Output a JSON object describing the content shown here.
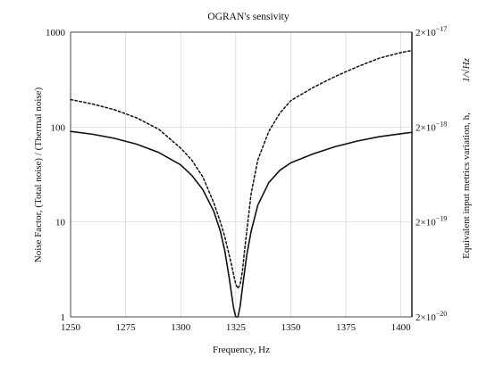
{
  "chart_data": {
    "type": "line",
    "title": "OGRAN's sensivity",
    "xlabel": "Frequency, Hz",
    "ylabel_left": "Noise Factor, (Total noise) / (Thermal noise)",
    "ylabel_right": "Equivalent input metrics variation, h,",
    "ylabel_right_unit": "1/√Hz",
    "xlim": [
      1250,
      1405
    ],
    "ylim_left": [
      1,
      1000
    ],
    "ylim_right": [
      2e-20,
      2e-17
    ],
    "y_scale": "log",
    "grid": true,
    "x_ticks": [
      "1250",
      "1275",
      "1300",
      "1325",
      "1350",
      "1375",
      "1400"
    ],
    "y_left_ticks": [
      "1",
      "10",
      "100",
      "1000"
    ],
    "y_right_ticks": [
      {
        "mant": "2×10",
        "exp": "−20"
      },
      {
        "mant": "2×10",
        "exp": "−19"
      },
      {
        "mant": "2×10",
        "exp": "−18"
      },
      {
        "mant": "2×10",
        "exp": "−17"
      }
    ],
    "series": [
      {
        "style": "solid",
        "axis": "left",
        "x": [
          1250,
          1260,
          1270,
          1280,
          1290,
          1300,
          1305,
          1310,
          1315,
          1318,
          1320,
          1322,
          1323,
          1324,
          1325,
          1326,
          1327,
          1328,
          1330,
          1332,
          1335,
          1340,
          1345,
          1350,
          1360,
          1370,
          1380,
          1390,
          1400,
          1405
        ],
        "y": [
          90,
          84,
          76,
          66,
          54,
          40,
          31,
          22,
          13,
          8,
          5,
          2.6,
          1.8,
          1.25,
          1.0,
          1.0,
          1.3,
          2.0,
          4.5,
          8,
          15,
          26,
          35,
          42,
          52,
          62,
          71,
          79,
          85,
          88
        ]
      },
      {
        "style": "dashed",
        "axis": "left",
        "x": [
          1250,
          1260,
          1270,
          1280,
          1290,
          1300,
          1305,
          1310,
          1315,
          1318,
          1320,
          1322,
          1323,
          1324,
          1325,
          1326,
          1327,
          1328,
          1329,
          1330,
          1332,
          1335,
          1340,
          1345,
          1350,
          1360,
          1370,
          1380,
          1390,
          1400,
          1405
        ],
        "y": [
          195,
          175,
          152,
          125,
          95,
          60,
          45,
          30,
          16,
          10,
          7,
          4.5,
          3.6,
          2.8,
          2.2,
          2.0,
          2.2,
          3,
          5,
          8,
          20,
          45,
          90,
          140,
          190,
          260,
          340,
          430,
          530,
          610,
          640
        ]
      }
    ]
  }
}
